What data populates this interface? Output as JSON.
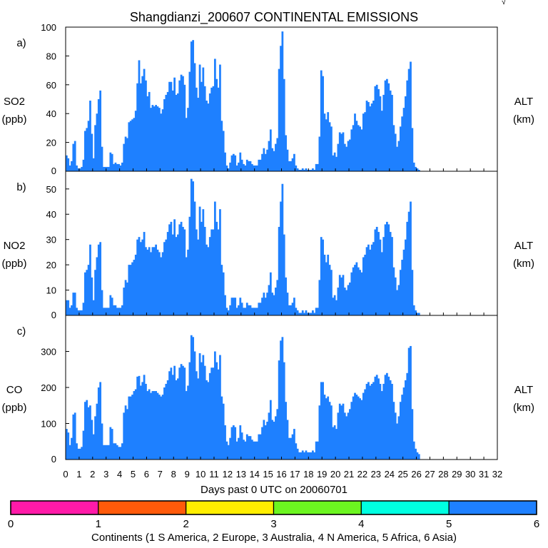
{
  "title": "Shangdianzi_200607 CONTINENTAL EMISSIONS",
  "corner_mark": "√",
  "xlabel": "Days past 0 UTC on 20060701",
  "x_ticks": [
    "0",
    "1",
    "2",
    "3",
    "4",
    "5",
    "6",
    "7",
    "8",
    "9",
    "10",
    "11",
    "12",
    "13",
    "14",
    "15",
    "16",
    "17",
    "18",
    "19",
    "20",
    "21",
    "22",
    "23",
    "24",
    "25",
    "26",
    "27",
    "28",
    "29",
    "30",
    "31",
    "32"
  ],
  "colorbar": {
    "label": "Continents (1 S America, 2 Europe, 3 Australia, 4 N America, 5 Africa, 6 Asia)",
    "ticks": [
      "0",
      "1",
      "2",
      "3",
      "4",
      "5",
      "6"
    ],
    "colors": [
      "#ff1aa8",
      "#ff5a0a",
      "#ffee00",
      "#6cf520",
      "#00ffe1",
      "#1e80ff"
    ]
  },
  "colors": {
    "asia": "#1e80ff",
    "europe": "#ff5a0a",
    "n_america": "#6cf520",
    "axis": "#000000"
  },
  "chart_data": [
    {
      "type": "bar",
      "panel": "a)",
      "ylabel": "SO2",
      "yunits": "(ppb)",
      "right_label": "ALT",
      "right_units": "(km)",
      "ylim": [
        0,
        100
      ],
      "yticks": [
        "0",
        "20",
        "40",
        "60",
        "80",
        "100"
      ],
      "xlim": [
        0,
        32
      ],
      "bins_per_day": 8,
      "series": [
        {
          "name": "Asia",
          "values": [
            11,
            9,
            4,
            7,
            19,
            21,
            4,
            2,
            2,
            3,
            8,
            28,
            30,
            35,
            49,
            26,
            9,
            32,
            40,
            50,
            56,
            17,
            3,
            3,
            3,
            3,
            13,
            12,
            5,
            6,
            5,
            5,
            4,
            6,
            19,
            24,
            23,
            34,
            35,
            36,
            37,
            42,
            61,
            77,
            61,
            66,
            71,
            63,
            52,
            55,
            44,
            46,
            45,
            46,
            45,
            44,
            40,
            43,
            50,
            53,
            55,
            62,
            62,
            56,
            65,
            53,
            54,
            63,
            67,
            66,
            60,
            37,
            44,
            69,
            90,
            91,
            75,
            58,
            51,
            74,
            62,
            72,
            59,
            49,
            47,
            54,
            58,
            59,
            78,
            64,
            58,
            74,
            35,
            28,
            13,
            4,
            2,
            6,
            11,
            12,
            11,
            4,
            6,
            13,
            8,
            5,
            4,
            8,
            7,
            7,
            5,
            4,
            4,
            4,
            8,
            8,
            12,
            16,
            12,
            15,
            21,
            29,
            16,
            14,
            19,
            23,
            71,
            87,
            97,
            64,
            25,
            15,
            7,
            7,
            9,
            12,
            4,
            2,
            1,
            1,
            2,
            1,
            2,
            1,
            1,
            1,
            2,
            1,
            5,
            5,
            24,
            70,
            66,
            40,
            36,
            41,
            34,
            31,
            11,
            13,
            10,
            19,
            27,
            26,
            27,
            19,
            17,
            21,
            22,
            29,
            32,
            40,
            35,
            32,
            31,
            29,
            40,
            41,
            49,
            48,
            45,
            47,
            49,
            59,
            60,
            57,
            52,
            42,
            53,
            63,
            64,
            61,
            56,
            53,
            32,
            26,
            17,
            21,
            31,
            38,
            44,
            52,
            63,
            71,
            76,
            30,
            6,
            3,
            2,
            1
          ]
        }
      ]
    },
    {
      "type": "bar",
      "panel": "b)",
      "ylabel": "NO2",
      "yunits": "(ppb)",
      "right_label": "ALT",
      "right_units": "(km)",
      "ylim": [
        0,
        57
      ],
      "yticks": [
        "0",
        "10",
        "20",
        "30",
        "40",
        "50"
      ],
      "xlim": [
        0,
        32
      ],
      "bins_per_day": 8,
      "series": [
        {
          "name": "Asia",
          "values": [
            6,
            6,
            3,
            4,
            9,
            9,
            3,
            2,
            2,
            2,
            5,
            17,
            18,
            20,
            28,
            15,
            6,
            18,
            23,
            28,
            29,
            10,
            3,
            3,
            3,
            3,
            8,
            7,
            4,
            4,
            3,
            3,
            3,
            4,
            11,
            14,
            13,
            20,
            20,
            21,
            22,
            24,
            30,
            31,
            29,
            30,
            33,
            27,
            26,
            27,
            25,
            27,
            27,
            28,
            26,
            25,
            23,
            25,
            29,
            30,
            33,
            36,
            37,
            32,
            38,
            31,
            32,
            36,
            37,
            35,
            34,
            23,
            26,
            39,
            54,
            53,
            45,
            34,
            30,
            43,
            37,
            42,
            35,
            28,
            27,
            31,
            34,
            34,
            45,
            37,
            34,
            42,
            20,
            17,
            8,
            3,
            2,
            4,
            7,
            7,
            7,
            3,
            4,
            7,
            5,
            3,
            3,
            5,
            4,
            4,
            3,
            3,
            3,
            3,
            5,
            5,
            7,
            9,
            7,
            9,
            12,
            17,
            9,
            8,
            11,
            14,
            35,
            45,
            52,
            32,
            15,
            9,
            4,
            4,
            5,
            7,
            3,
            2,
            1,
            1,
            2,
            1,
            2,
            1,
            1,
            1,
            2,
            1,
            3,
            3,
            14,
            31,
            30,
            24,
            21,
            24,
            20,
            18,
            7,
            8,
            6,
            11,
            16,
            15,
            16,
            11,
            10,
            12,
            13,
            17,
            19,
            20,
            21,
            19,
            18,
            17,
            23,
            24,
            27,
            28,
            26,
            28,
            29,
            34,
            35,
            33,
            30,
            25,
            31,
            36,
            37,
            36,
            33,
            31,
            19,
            15,
            10,
            12,
            18,
            22,
            26,
            30,
            37,
            41,
            45,
            18,
            4,
            2,
            1,
            1
          ]
        },
        {
          "name": "Europe",
          "values": [
            0,
            0,
            0,
            0,
            0,
            0,
            0,
            0,
            0,
            0,
            0,
            0,
            0,
            0,
            0,
            0,
            0,
            0,
            0,
            0,
            0,
            0,
            0,
            0,
            0,
            0,
            0,
            0,
            0,
            0,
            0,
            0,
            0,
            0,
            0,
            0,
            0,
            0,
            0,
            0,
            0,
            0,
            0,
            0,
            0,
            0,
            0,
            0,
            0,
            0,
            0,
            0,
            0,
            0,
            0,
            0,
            0,
            0,
            0,
            0,
            0,
            0,
            0,
            0,
            0,
            0,
            0,
            0,
            0,
            0,
            0,
            0,
            0,
            0,
            0,
            0,
            0,
            0,
            0,
            0,
            0,
            0,
            0,
            0,
            0,
            0,
            0,
            0,
            0,
            0,
            0,
            0,
            0,
            0,
            0,
            0,
            0,
            0,
            0,
            0,
            0,
            0,
            0,
            0,
            0,
            0,
            0,
            0,
            0,
            0,
            0,
            0,
            0,
            0,
            0,
            0,
            0,
            0,
            0,
            0,
            0,
            0,
            0,
            0,
            0,
            0,
            0,
            0,
            0,
            0,
            0,
            0,
            0,
            0,
            0,
            0,
            0,
            0,
            0,
            0,
            0,
            0,
            0,
            0,
            0,
            0,
            0,
            0,
            0,
            0,
            0,
            0,
            0,
            0,
            0,
            0,
            0,
            0,
            0,
            0,
            0,
            0,
            0,
            0,
            0,
            0,
            0,
            0,
            0,
            0,
            0,
            0,
            0,
            0,
            0,
            0,
            0,
            0,
            0,
            0,
            0,
            0,
            0,
            0,
            0,
            0,
            0,
            0,
            0,
            0,
            0,
            0,
            0,
            0,
            0,
            0,
            0,
            0,
            0,
            0,
            0,
            0,
            0,
            0,
            0,
            0,
            0,
            0,
            0,
            0,
            0,
            0,
            0,
            0,
            0,
            0,
            0,
            0,
            0
          ]
        }
      ]
    },
    {
      "type": "bar",
      "panel": "c)",
      "ylabel": "CO",
      "yunits": "(ppb)",
      "right_label": "ALT",
      "right_units": "(km)",
      "ylim": [
        0,
        400
      ],
      "yticks": [
        "0",
        "100",
        "200",
        "300"
      ],
      "xlim": [
        0,
        32
      ],
      "bins_per_day": 8,
      "series": [
        {
          "name": "Asia",
          "values": [
            85,
            75,
            40,
            60,
            125,
            130,
            45,
            30,
            30,
            35,
            80,
            160,
            165,
            145,
            150,
            110,
            70,
            120,
            155,
            200,
            215,
            100,
            40,
            40,
            40,
            40,
            90,
            85,
            45,
            45,
            40,
            35,
            35,
            45,
            130,
            150,
            140,
            175,
            175,
            180,
            190,
            195,
            230,
            232,
            205,
            215,
            235,
            210,
            190,
            195,
            185,
            190,
            190,
            190,
            185,
            180,
            175,
            180,
            200,
            210,
            220,
            245,
            255,
            235,
            260,
            220,
            225,
            255,
            265,
            260,
            255,
            190,
            205,
            270,
            345,
            340,
            300,
            245,
            225,
            295,
            270,
            290,
            260,
            220,
            215,
            240,
            255,
            255,
            300,
            270,
            250,
            290,
            175,
            155,
            95,
            50,
            40,
            60,
            90,
            95,
            90,
            50,
            60,
            95,
            75,
            55,
            50,
            70,
            65,
            65,
            55,
            50,
            50,
            50,
            70,
            70,
            90,
            110,
            95,
            105,
            130,
            165,
            110,
            105,
            120,
            140,
            275,
            330,
            340,
            270,
            160,
            110,
            60,
            60,
            70,
            85,
            45,
            30,
            20,
            20,
            25,
            20,
            25,
            20,
            20,
            20,
            25,
            20,
            50,
            50,
            150,
            215,
            215,
            180,
            170,
            175,
            160,
            150,
            90,
            95,
            85,
            130,
            155,
            150,
            155,
            130,
            120,
            130,
            140,
            160,
            175,
            185,
            180,
            175,
            170,
            165,
            185,
            195,
            210,
            215,
            205,
            210,
            215,
            230,
            235,
            225,
            210,
            190,
            210,
            235,
            240,
            230,
            220,
            210,
            160,
            130,
            100,
            120,
            160,
            180,
            200,
            220,
            240,
            310,
            315,
            140,
            50,
            30,
            20,
            15
          ]
        },
        {
          "name": "Europe",
          "values": [
            0,
            0,
            0,
            0,
            0,
            0,
            0,
            0,
            0,
            0,
            0,
            0,
            0,
            0,
            0,
            0,
            0,
            0,
            0,
            0,
            0,
            0,
            0,
            0,
            0,
            0,
            0,
            0,
            0,
            0,
            0,
            0,
            0,
            0,
            0,
            0,
            0,
            0,
            0,
            0,
            0,
            0,
            0,
            0,
            0,
            0,
            0,
            0,
            0,
            0,
            0,
            0,
            0,
            0,
            0,
            0,
            0,
            0,
            0,
            0,
            0,
            0,
            0,
            0,
            0,
            0,
            0,
            0,
            0,
            0,
            0,
            0,
            0,
            0,
            0,
            0,
            0,
            0,
            0,
            0,
            0,
            0,
            0,
            0,
            0,
            0,
            0,
            0,
            0,
            0,
            0,
            0,
            0,
            0,
            0,
            0,
            0,
            0,
            0,
            0,
            0,
            0,
            0,
            0,
            0,
            0,
            0,
            0,
            0,
            0,
            0,
            0,
            0,
            0,
            0,
            0,
            0,
            0,
            0,
            0,
            0,
            0,
            0,
            0,
            0,
            0,
            0,
            0,
            0,
            0,
            0,
            0,
            0,
            0,
            0,
            0,
            0,
            0,
            0,
            0,
            0,
            0,
            0,
            0,
            0,
            0,
            0,
            0,
            0,
            0,
            0,
            0,
            0,
            0,
            0,
            0,
            0,
            0,
            0,
            0,
            0,
            0,
            0,
            0,
            0,
            0,
            0,
            0,
            0,
            0,
            0,
            0,
            0,
            0,
            0,
            0,
            0,
            0,
            0,
            0,
            0,
            0,
            0,
            0,
            0,
            0,
            0,
            0,
            0,
            0,
            0,
            0,
            0,
            0,
            0,
            0,
            0,
            0,
            0,
            0,
            0,
            0,
            0,
            0,
            0,
            0,
            0,
            0,
            0,
            0,
            0,
            0,
            0,
            0,
            0,
            0,
            0,
            0,
            0
          ]
        }
      ]
    }
  ]
}
